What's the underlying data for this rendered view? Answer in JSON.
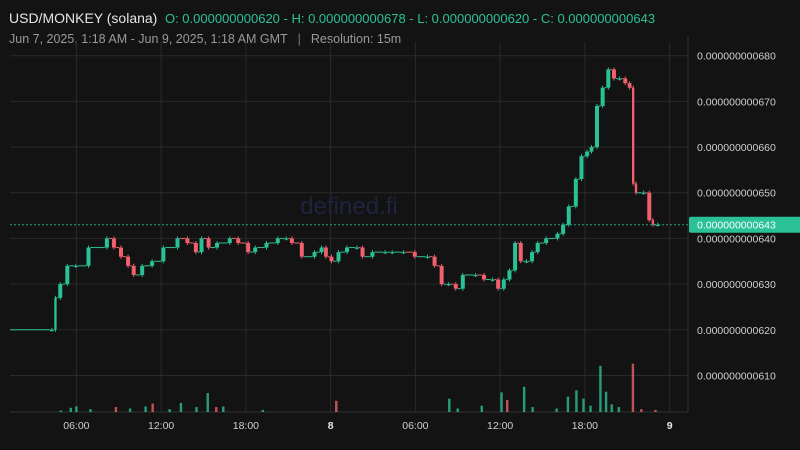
{
  "header": {
    "symbol": "USD/MONKEY (solana)",
    "ohlc_text": "O: 0.000000000620 - H: 0.000000000678 - L: 0.000000000620 - C: 0.000000000643",
    "date_range": "Jun 7, 2025, 1:18 AM - Jun 9, 2025, 1:18 AM GMT",
    "separator": "|",
    "resolution": "Resolution: 15m"
  },
  "watermark": "defined.fi",
  "colors": {
    "up": "#2bc196",
    "down": "#f0616d",
    "background": "#131313",
    "grid": "#2a2a2a",
    "last_price_bg": "#2bc196"
  },
  "chart_data": {
    "type": "candlestick",
    "y_ticks": [
      "0.000000000680",
      "0.000000000670",
      "0.000000000660",
      "0.000000000650",
      "0.000000000640",
      "0.000000000630",
      "0.000000000620",
      "0.000000000610"
    ],
    "y_range": [
      6.02e-10,
      6.83e-10
    ],
    "last_price": "0.000000000643",
    "x_ticks": [
      {
        "label": "06:00",
        "hour": 6,
        "bold": false
      },
      {
        "label": "12:00",
        "hour": 12,
        "bold": false
      },
      {
        "label": "18:00",
        "hour": 18,
        "bold": false
      },
      {
        "label": "8",
        "hour": 24,
        "bold": true
      },
      {
        "label": "06:00",
        "hour": 30,
        "bold": false
      },
      {
        "label": "12:00",
        "hour": 36,
        "bold": false
      },
      {
        "label": "18:00",
        "hour": 42,
        "bold": false
      },
      {
        "label": "9",
        "hour": 48,
        "bold": true
      }
    ],
    "x_range_hours": [
      1.3,
      49.3
    ],
    "close_path": [
      [
        1.3,
        620
      ],
      [
        4.4,
        620
      ],
      [
        4.6,
        627
      ],
      [
        5.0,
        630
      ],
      [
        5.5,
        634
      ],
      [
        6.1,
        634
      ],
      [
        7.0,
        638
      ],
      [
        8.3,
        640
      ],
      [
        8.8,
        638
      ],
      [
        9.3,
        636
      ],
      [
        9.8,
        634
      ],
      [
        10.2,
        632
      ],
      [
        10.8,
        634
      ],
      [
        11.5,
        635
      ],
      [
        12.3,
        638
      ],
      [
        13.3,
        640
      ],
      [
        14.0,
        639
      ],
      [
        14.6,
        637
      ],
      [
        15.0,
        640
      ],
      [
        15.5,
        638
      ],
      [
        16.1,
        639
      ],
      [
        17.0,
        640
      ],
      [
        17.6,
        639
      ],
      [
        18.3,
        637
      ],
      [
        18.8,
        638
      ],
      [
        19.6,
        639
      ],
      [
        20.4,
        640
      ],
      [
        21.0,
        640
      ],
      [
        21.4,
        639
      ],
      [
        22.1,
        636
      ],
      [
        23.0,
        637
      ],
      [
        23.5,
        638
      ],
      [
        23.8,
        636
      ],
      [
        24.2,
        635
      ],
      [
        24.7,
        637
      ],
      [
        25.3,
        638
      ],
      [
        26.0,
        638
      ],
      [
        26.4,
        636
      ],
      [
        27.1,
        637
      ],
      [
        28.0,
        637
      ],
      [
        28.5,
        637
      ],
      [
        29.3,
        637
      ],
      [
        30.1,
        636
      ],
      [
        31.0,
        636
      ],
      [
        31.5,
        634
      ],
      [
        32.0,
        630
      ],
      [
        32.5,
        630
      ],
      [
        33.0,
        629
      ],
      [
        33.5,
        632
      ],
      [
        34.4,
        632
      ],
      [
        35.0,
        631
      ],
      [
        35.6,
        631
      ],
      [
        36.0,
        629
      ],
      [
        36.4,
        631
      ],
      [
        36.8,
        633
      ],
      [
        37.2,
        639
      ],
      [
        37.6,
        635
      ],
      [
        38.0,
        635
      ],
      [
        38.4,
        637
      ],
      [
        38.8,
        639
      ],
      [
        39.4,
        640
      ],
      [
        40.2,
        641
      ],
      [
        40.6,
        643
      ],
      [
        41.0,
        647
      ],
      [
        41.5,
        653
      ],
      [
        41.9,
        658
      ],
      [
        42.3,
        659
      ],
      [
        42.6,
        660
      ],
      [
        43.0,
        669
      ],
      [
        43.4,
        673
      ],
      [
        43.8,
        677
      ],
      [
        44.2,
        675
      ],
      [
        44.6,
        675
      ],
      [
        45.0,
        674
      ],
      [
        45.3,
        673
      ],
      [
        45.5,
        652
      ],
      [
        45.7,
        650
      ],
      [
        46.3,
        650
      ],
      [
        46.7,
        644
      ],
      [
        46.9,
        643
      ],
      [
        47.3,
        643
      ]
    ],
    "volumes": [
      {
        "h": 4.9,
        "v": 0.02,
        "c": "up"
      },
      {
        "h": 5.6,
        "v": 0.06,
        "c": "up"
      },
      {
        "h": 6.0,
        "v": 0.08,
        "c": "up"
      },
      {
        "h": 7.0,
        "v": 0.04,
        "c": "up"
      },
      {
        "h": 8.8,
        "v": 0.07,
        "c": "down"
      },
      {
        "h": 9.8,
        "v": 0.05,
        "c": "up"
      },
      {
        "h": 10.9,
        "v": 0.08,
        "c": "up"
      },
      {
        "h": 11.4,
        "v": 0.12,
        "c": "down"
      },
      {
        "h": 12.6,
        "v": 0.04,
        "c": "up"
      },
      {
        "h": 13.4,
        "v": 0.13,
        "c": "up"
      },
      {
        "h": 14.5,
        "v": 0.07,
        "c": "up"
      },
      {
        "h": 15.3,
        "v": 0.27,
        "c": "up"
      },
      {
        "h": 15.9,
        "v": 0.07,
        "c": "down"
      },
      {
        "h": 16.4,
        "v": 0.08,
        "c": "up"
      },
      {
        "h": 19.2,
        "v": 0.03,
        "c": "up"
      },
      {
        "h": 24.4,
        "v": 0.16,
        "c": "down"
      },
      {
        "h": 32.4,
        "v": 0.19,
        "c": "up"
      },
      {
        "h": 33.0,
        "v": 0.05,
        "c": "up"
      },
      {
        "h": 34.7,
        "v": 0.09,
        "c": "up"
      },
      {
        "h": 36.1,
        "v": 0.28,
        "c": "up"
      },
      {
        "h": 36.5,
        "v": 0.17,
        "c": "down"
      },
      {
        "h": 37.7,
        "v": 0.36,
        "c": "up"
      },
      {
        "h": 38.3,
        "v": 0.07,
        "c": "up"
      },
      {
        "h": 40.0,
        "v": 0.05,
        "c": "up"
      },
      {
        "h": 40.8,
        "v": 0.22,
        "c": "up"
      },
      {
        "h": 41.4,
        "v": 0.31,
        "c": "up"
      },
      {
        "h": 41.9,
        "v": 0.19,
        "c": "up"
      },
      {
        "h": 42.4,
        "v": 0.09,
        "c": "up"
      },
      {
        "h": 43.1,
        "v": 0.66,
        "c": "up"
      },
      {
        "h": 43.5,
        "v": 0.29,
        "c": "up"
      },
      {
        "h": 43.9,
        "v": 0.11,
        "c": "up"
      },
      {
        "h": 44.4,
        "v": 0.07,
        "c": "up"
      },
      {
        "h": 45.4,
        "v": 0.69,
        "c": "down"
      },
      {
        "h": 46.0,
        "v": 0.04,
        "c": "down"
      },
      {
        "h": 47.0,
        "v": 0.03,
        "c": "down"
      }
    ],
    "grid": true
  }
}
